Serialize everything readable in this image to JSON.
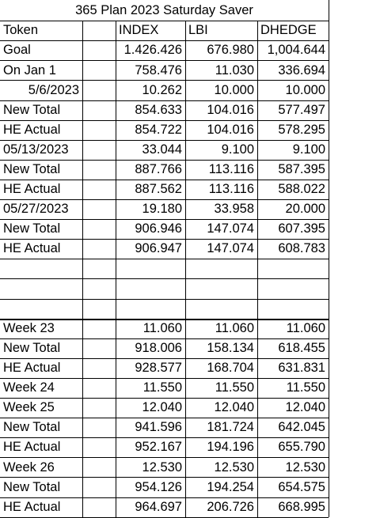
{
  "title": "365 Plan 2023 Saturday Saver",
  "headers": [
    "Token",
    "INDEX",
    "LBI",
    "DHEDGE"
  ],
  "rows": [
    {
      "label": "Goal",
      "values": [
        "1.426.426",
        "676.980",
        "1,004.644"
      ]
    },
    {
      "label": "On Jan 1",
      "values": [
        "758.476",
        "11.030",
        "336.694"
      ]
    },
    {
      "label": "5/6/2023",
      "values": [
        "10.262",
        "10.000",
        "10.000"
      ],
      "label_align": "right"
    },
    {
      "label": "New Total",
      "values": [
        "854.633",
        "104.016",
        "577.497"
      ]
    },
    {
      "label": "HE Actual",
      "values": [
        "854.722",
        "104.016",
        "578.295"
      ]
    },
    {
      "label": "05/13/2023",
      "values": [
        "33.044",
        "9.100",
        "9.100"
      ]
    },
    {
      "label": "New Total",
      "values": [
        "887.766",
        "113.116",
        "587.395"
      ]
    },
    {
      "label": "HE Actual",
      "values": [
        "887.562",
        "113.116",
        "588.022"
      ]
    },
    {
      "label": "05/27/2023",
      "values": [
        "19.180",
        "33.958",
        "20.000"
      ]
    },
    {
      "label": "New Total",
      "values": [
        "906.946",
        "147.074",
        "607.395"
      ]
    },
    {
      "label": "HE Actual",
      "values": [
        "906.947",
        "147.074",
        "608.783"
      ]
    },
    {
      "label": "",
      "values": [
        "",
        "",
        ""
      ]
    },
    {
      "label": "",
      "values": [
        "",
        "",
        ""
      ]
    },
    {
      "label": "",
      "values": [
        "",
        "",
        ""
      ]
    },
    {
      "label": "Week 23",
      "values": [
        "11.060",
        "11.060",
        "11.060"
      ]
    },
    {
      "label": "New Total",
      "values": [
        "918.006",
        "158.134",
        "618.455"
      ]
    },
    {
      "label": "HE Actual",
      "values": [
        "928.577",
        "168.704",
        "631.831"
      ]
    },
    {
      "label": "Week 24",
      "values": [
        "11.550",
        "11.550",
        "11.550"
      ]
    },
    {
      "label": "Week 25",
      "values": [
        "12.040",
        "12.040",
        "12.040"
      ]
    },
    {
      "label": "New Total",
      "values": [
        "941.596",
        "181.724",
        "642.045"
      ]
    },
    {
      "label": "HE Actual",
      "values": [
        "952.167",
        "194.196",
        "655.790"
      ]
    },
    {
      "label": "Week 26",
      "values": [
        "12.530",
        "12.530",
        "12.530"
      ]
    },
    {
      "label": "New Total",
      "values": [
        "954.126",
        "194.254",
        "654.575"
      ]
    },
    {
      "label": "HE Actual",
      "values": [
        "964.697",
        "206.726",
        "668.995"
      ]
    }
  ]
}
